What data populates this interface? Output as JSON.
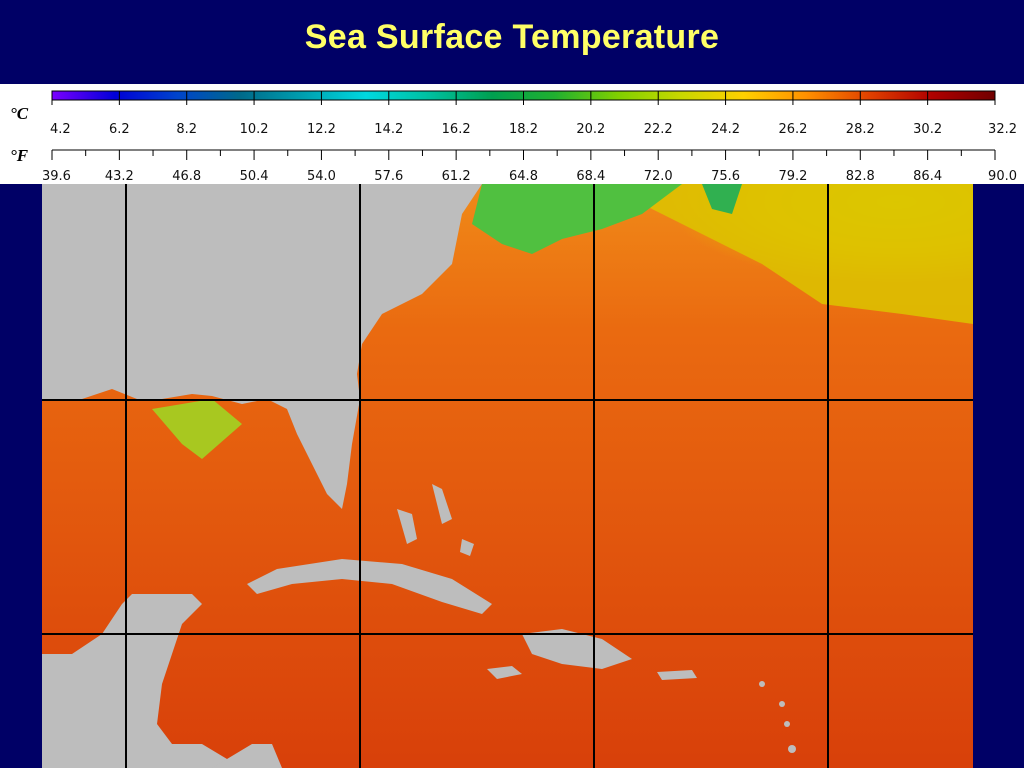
{
  "title": "Sea Surface Temperature",
  "colorbar": {
    "celsius_unit": "°C",
    "fahrenheit_unit": "°F",
    "celsius_ticks": [
      "4.2",
      "6.2",
      "8.2",
      "10.2",
      "12.2",
      "14.2",
      "16.2",
      "18.2",
      "20.2",
      "22.2",
      "24.2",
      "26.2",
      "28.2",
      "30.2",
      "32.2"
    ],
    "fahrenheit_ticks": [
      "39.6",
      "43.2",
      "46.8",
      "50.4",
      "54.0",
      "57.6",
      "61.2",
      "64.8",
      "68.4",
      "72.0",
      "75.6",
      "79.2",
      "82.8",
      "86.4",
      "90.0"
    ],
    "colors": [
      "#7b00ff",
      "#0000d8",
      "#0044cc",
      "#006a8a",
      "#00a0b0",
      "#00d8e0",
      "#00c0a0",
      "#00a050",
      "#20b030",
      "#80d000",
      "#c8d800",
      "#ffd000",
      "#ff9000",
      "#e04000",
      "#b00000",
      "#700000"
    ]
  },
  "map": {
    "land_color": "#bdbdbd",
    "warm_color": "#e04a0a",
    "mid_color": "#ee7a12",
    "cool_color": "#d8c800",
    "cold_color": "#48c048",
    "grid_color": "#000000"
  }
}
